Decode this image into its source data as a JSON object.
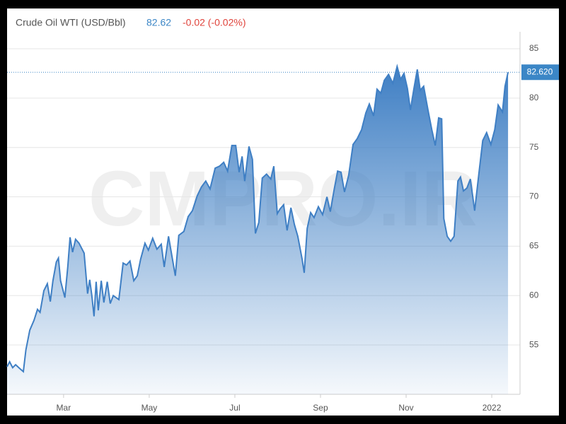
{
  "chart_data": {
    "type": "area",
    "title": "Crude Oil WTI (USD/Bbl)",
    "price": 82.62,
    "change": "-0.02 (-0.02%)",
    "watermark": "CMPRO.IR",
    "last_price": {
      "value": 82.62,
      "label": "82.620"
    },
    "color": "#3f7fc4",
    "grid": true,
    "xlim": [
      1.68,
      13.66
    ],
    "xticks": [
      {
        "value": 3,
        "label": "Mar"
      },
      {
        "value": 5,
        "label": "May"
      },
      {
        "value": 7,
        "label": "Jul"
      },
      {
        "value": 9,
        "label": "Sep"
      },
      {
        "value": 11,
        "label": "Nov"
      },
      {
        "value": 13,
        "label": "2022"
      }
    ],
    "ylim": [
      50,
      86
    ],
    "yticks": [
      55,
      60,
      65,
      70,
      75,
      80,
      85
    ],
    "x": [
      1.68,
      1.74,
      1.81,
      1.88,
      1.98,
      2.06,
      2.12,
      2.21,
      2.31,
      2.39,
      2.45,
      2.54,
      2.62,
      2.69,
      2.75,
      2.83,
      2.88,
      2.93,
      3.03,
      3.1,
      3.15,
      3.21,
      3.28,
      3.36,
      3.48,
      3.56,
      3.61,
      3.66,
      3.71,
      3.76,
      3.81,
      3.88,
      3.94,
      4.02,
      4.09,
      4.16,
      4.29,
      4.39,
      4.47,
      4.55,
      4.64,
      4.72,
      4.8,
      4.9,
      4.98,
      5.08,
      5.18,
      5.28,
      5.35,
      5.45,
      5.51,
      5.61,
      5.69,
      5.81,
      5.91,
      6.01,
      6.12,
      6.22,
      6.32,
      6.42,
      6.54,
      6.64,
      6.74,
      6.83,
      6.93,
      7.02,
      7.1,
      7.17,
      7.23,
      7.33,
      7.41,
      7.48,
      7.56,
      7.64,
      7.74,
      7.84,
      7.91,
      7.99,
      8.06,
      8.14,
      8.22,
      8.31,
      8.39,
      8.47,
      8.57,
      8.62,
      8.69,
      8.77,
      8.85,
      8.95,
      9.05,
      9.15,
      9.23,
      9.31,
      9.4,
      9.48,
      9.56,
      9.66,
      9.76,
      9.86,
      9.96,
      10.06,
      10.14,
      10.24,
      10.32,
      10.41,
      10.49,
      10.59,
      10.69,
      10.79,
      10.87,
      10.95,
      11.03,
      11.1,
      11.18,
      11.26,
      11.33,
      11.41,
      11.51,
      11.6,
      11.68,
      11.76,
      11.83,
      11.88,
      11.96,
      12.04,
      12.12,
      12.21,
      12.27,
      12.34,
      12.42,
      12.5,
      12.6,
      12.69,
      12.79,
      12.88,
      12.98,
      13.07,
      13.15,
      13.25,
      13.31,
      13.38
    ],
    "values": [
      52.8,
      53.3,
      52.7,
      53.0,
      52.6,
      52.3,
      54.5,
      56.5,
      57.5,
      58.6,
      58.3,
      60.5,
      61.2,
      59.4,
      61.5,
      63.4,
      63.8,
      61.5,
      59.8,
      63.0,
      65.9,
      64.4,
      65.7,
      65.3,
      64.3,
      60.2,
      61.6,
      60.0,
      57.9,
      61.4,
      58.5,
      61.5,
      59.3,
      61.4,
      59.2,
      60.0,
      59.6,
      63.3,
      63.1,
      63.5,
      61.5,
      62.0,
      63.7,
      65.3,
      64.6,
      65.8,
      64.7,
      65.2,
      62.9,
      66.0,
      64.5,
      62.0,
      66.1,
      66.5,
      68.0,
      68.6,
      70.1,
      71.0,
      71.6,
      70.8,
      72.9,
      73.1,
      73.5,
      72.6,
      75.2,
      75.2,
      72.5,
      74.1,
      71.6,
      75.1,
      73.8,
      66.3,
      67.4,
      71.9,
      72.3,
      71.8,
      73.1,
      68.3,
      68.8,
      69.2,
      66.6,
      68.9,
      67.2,
      66.0,
      63.7,
      62.3,
      66.8,
      68.4,
      67.9,
      69.0,
      68.2,
      70.0,
      68.5,
      70.5,
      72.6,
      72.5,
      70.5,
      72.2,
      75.3,
      75.9,
      76.8,
      78.5,
      79.4,
      78.2,
      80.9,
      80.5,
      81.8,
      82.4,
      81.5,
      83.2,
      81.9,
      82.5,
      81.0,
      78.8,
      80.9,
      82.9,
      80.8,
      81.2,
      78.8,
      76.8,
      75.2,
      78.0,
      77.9,
      67.8,
      66.0,
      65.5,
      66.0,
      71.6,
      72.0,
      70.6,
      70.9,
      71.8,
      68.6,
      72.0,
      75.7,
      76.5,
      75.3,
      76.8,
      79.3,
      78.6,
      81.2,
      82.62
    ]
  }
}
